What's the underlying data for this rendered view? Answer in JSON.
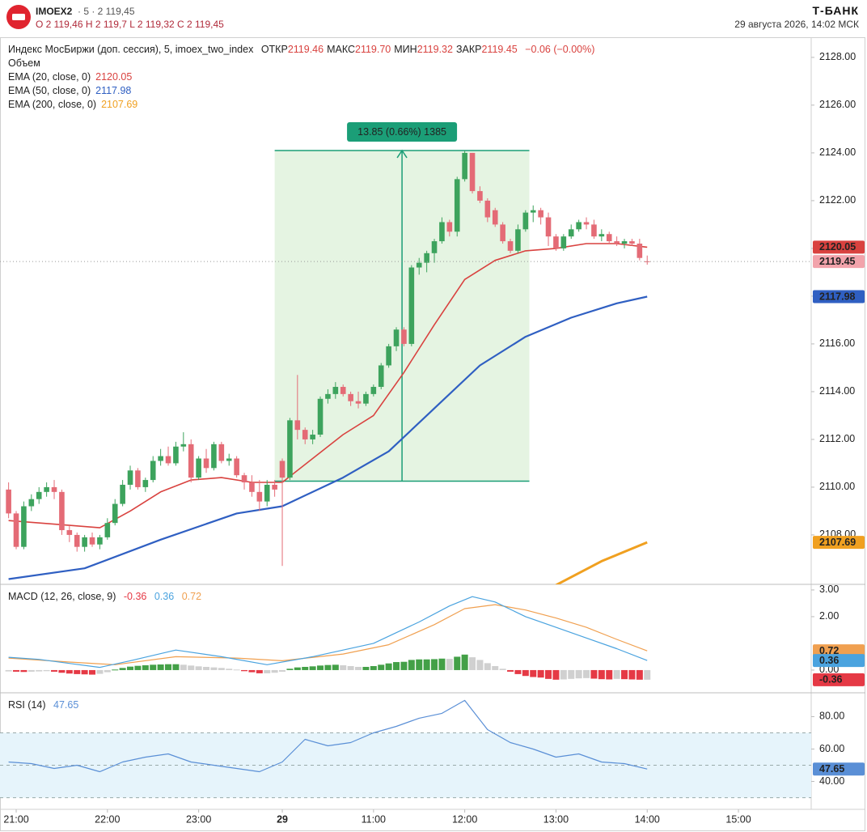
{
  "header": {
    "symbol": "IMOEX2",
    "meta": "· 5 · 2 119,45",
    "ohlc": "O 2 119,46   H 2 119,7   L 2 119,32   C 2 119,45",
    "brand": "Т-БАНК",
    "datetime": "29 августа 2026, 14:02 МСК"
  },
  "chart_data": [
    {
      "type": "candlestick",
      "title": "Индекс МосБиржи (доп. сессия), 5, imoex_two_index",
      "ohlc_legend": [
        {
          "label": "ОТКР",
          "value": "2119.46"
        },
        {
          "label": "МАКС",
          "value": "2119.70"
        },
        {
          "label": "МИН",
          "value": "2119.32"
        },
        {
          "label": "ЗАКР",
          "value": "2119.45"
        }
      ],
      "change": "−0.06 (−0.00%)",
      "volume_label": "Объем",
      "up_color": "#3da35d",
      "down_color": "#e46b76",
      "last_price_color": "#f2a3ab",
      "xlim": [
        -1.13,
        105.57
      ],
      "xticks": [
        {
          "value": 1,
          "label": "21:00"
        },
        {
          "value": 13,
          "label": "22:00"
        },
        {
          "value": 25,
          "label": "23:00"
        },
        {
          "value": 36,
          "label": "29"
        },
        {
          "value": 48,
          "label": "11:00"
        },
        {
          "value": 60,
          "label": "12:00"
        },
        {
          "value": 72,
          "label": "13:00"
        },
        {
          "value": 84,
          "label": "14:00"
        },
        {
          "value": 96,
          "label": "15:00"
        }
      ],
      "ylim": [
        2105.93,
        2128.81
      ],
      "yticks": [
        {
          "value": 2108,
          "label": "2108.00"
        },
        {
          "value": 2110,
          "label": "2110.00"
        },
        {
          "value": 2112,
          "label": "2112.00"
        },
        {
          "value": 2114,
          "label": "2114.00"
        },
        {
          "value": 2116,
          "label": "2116.00"
        },
        {
          "value": 2118,
          "label": "2118.00"
        },
        {
          "value": 2120,
          "label": "2120.00"
        },
        {
          "value": 2122,
          "label": "2122.00"
        },
        {
          "value": 2124,
          "label": "2124.00"
        },
        {
          "value": 2126,
          "label": "2126.00"
        },
        {
          "value": 2128,
          "label": "2128.00"
        }
      ],
      "grid": false,
      "x": [
        0,
        1,
        2,
        3,
        4,
        5,
        6,
        7,
        8,
        9,
        10,
        11,
        12,
        13,
        14,
        15,
        16,
        17,
        18,
        19,
        20,
        21,
        22,
        23,
        24,
        25,
        26,
        27,
        28,
        29,
        30,
        31,
        32,
        33,
        34,
        35,
        36,
        37,
        38,
        39,
        40,
        41,
        42,
        43,
        44,
        45,
        46,
        47,
        48,
        49,
        50,
        51,
        52,
        53,
        54,
        55,
        56,
        57,
        58,
        59,
        60,
        61,
        62,
        63,
        64,
        65,
        66,
        67,
        68,
        69,
        70,
        71,
        72,
        73,
        74,
        75,
        76,
        77,
        78,
        79,
        80,
        81,
        82,
        83,
        84
      ],
      "open": [
        2109.9,
        2108.9,
        2107.5,
        2109.2,
        2109.5,
        2109.8,
        2110.0,
        2109.8,
        2108.2,
        2108.0,
        2107.5,
        2107.9,
        2107.6,
        2107.9,
        2108.5,
        2109.3,
        2110.1,
        2110.7,
        2110.0,
        2110.3,
        2111.1,
        2111.3,
        2111.0,
        2111.7,
        2111.8,
        2110.4,
        2111.2,
        2110.8,
        2111.8,
        2111.1,
        2111.2,
        2110.5,
        2110.2,
        2109.8,
        2109.4,
        2110.1,
        2111.1,
        2110.4,
        2112.8,
        2112.4,
        2112.0,
        2112.2,
        2113.7,
        2113.9,
        2114.2,
        2113.9,
        2113.6,
        2113.5,
        2113.9,
        2114.2,
        2115.1,
        2115.9,
        2116.6,
        2116.0,
        2119.2,
        2119.4,
        2119.8,
        2120.3,
        2121.1,
        2120.7,
        2122.9,
        2124.0,
        2122.4,
        2122.0,
        2121.6,
        2121.0,
        2120.3,
        2119.9,
        2120.8,
        2121.5,
        2121.6,
        2121.3,
        2120.5,
        2120.0,
        2120.5,
        2120.8,
        2121.1,
        2121.0,
        2120.5,
        2120.6,
        2120.3,
        2120.2,
        2120.3,
        2120.2,
        2119.46
      ],
      "high": [
        2110.2,
        2109.0,
        2109.4,
        2109.7,
        2110.0,
        2110.2,
        2110.3,
        2109.9,
        2108.4,
        2108.1,
        2108.0,
        2108.1,
        2108.0,
        2108.7,
        2109.5,
        2110.3,
        2110.9,
        2110.8,
        2110.4,
        2111.3,
        2111.6,
        2111.7,
        2111.9,
        2112.3,
        2112.0,
        2111.3,
        2111.6,
        2111.9,
        2111.9,
        2111.4,
        2111.3,
        2110.6,
        2110.5,
        2110.3,
        2110.3,
        2110.3,
        2111.2,
        2112.9,
        2114.7,
        2112.5,
        2112.4,
        2113.8,
        2114.1,
        2114.4,
        2114.3,
        2114.0,
        2114.0,
        2114.0,
        2114.3,
        2115.2,
        2116.0,
        2116.7,
        2116.7,
        2119.3,
        2119.6,
        2119.9,
        2120.4,
        2121.3,
        2121.2,
        2123.0,
        2124.1,
        2124.0,
        2122.6,
        2122.1,
        2121.7,
        2121.1,
        2120.4,
        2121.0,
        2121.6,
        2121.8,
        2121.7,
        2121.5,
        2120.6,
        2120.6,
        2121.0,
        2121.2,
        2121.3,
        2121.2,
        2120.8,
        2120.7,
        2120.5,
        2120.4,
        2120.4,
        2120.4,
        2119.7
      ],
      "low": [
        2108.7,
        2107.4,
        2107.4,
        2109.0,
        2109.3,
        2109.6,
        2109.5,
        2108.0,
        2107.7,
        2107.3,
        2107.3,
        2107.5,
        2107.4,
        2107.8,
        2108.4,
        2109.2,
        2109.9,
        2109.9,
        2109.8,
        2110.2,
        2110.9,
        2110.9,
        2110.9,
        2111.5,
        2110.2,
        2110.3,
        2110.6,
        2110.7,
        2111.0,
        2110.9,
        2110.4,
        2109.9,
        2109.6,
        2109.0,
        2109.2,
        2109.6,
        2106.7,
        2110.3,
        2112.0,
        2111.8,
        2111.8,
        2112.1,
        2113.5,
        2113.7,
        2113.8,
        2113.4,
        2113.3,
        2113.4,
        2113.8,
        2114.1,
        2115.0,
        2115.7,
        2115.9,
        2115.9,
        2118.9,
        2119.0,
        2119.4,
        2120.2,
        2120.5,
        2120.5,
        2122.8,
        2122.3,
        2121.9,
        2121.1,
        2120.9,
        2120.2,
        2119.8,
        2119.8,
        2120.7,
        2121.1,
        2121.0,
        2120.1,
        2119.9,
        2119.9,
        2120.4,
        2120.7,
        2120.8,
        2120.4,
        2120.3,
        2120.2,
        2120.1,
        2120.0,
        2120.1,
        2119.5,
        2119.32
      ],
      "close": [
        2108.9,
        2107.5,
        2109.2,
        2109.5,
        2109.8,
        2110.0,
        2109.8,
        2108.2,
        2108.0,
        2107.5,
        2107.9,
        2107.6,
        2107.9,
        2108.5,
        2109.3,
        2110.1,
        2110.7,
        2110.0,
        2110.3,
        2111.1,
        2111.3,
        2111.0,
        2111.7,
        2111.8,
        2110.4,
        2111.2,
        2110.8,
        2111.8,
        2111.1,
        2111.2,
        2110.5,
        2110.2,
        2109.8,
        2109.4,
        2110.1,
        2109.9,
        2110.4,
        2112.8,
        2112.4,
        2112.0,
        2112.2,
        2113.7,
        2113.9,
        2114.2,
        2113.9,
        2113.6,
        2113.5,
        2113.9,
        2114.2,
        2115.1,
        2115.9,
        2116.6,
        2116.0,
        2119.2,
        2119.4,
        2119.8,
        2120.3,
        2121.1,
        2120.7,
        2122.9,
        2124.0,
        2122.4,
        2122.0,
        2121.3,
        2121.0,
        2120.3,
        2119.9,
        2120.8,
        2121.5,
        2121.6,
        2121.3,
        2120.5,
        2120.0,
        2120.5,
        2120.8,
        2121.1,
        2121.0,
        2120.5,
        2120.6,
        2120.3,
        2120.2,
        2120.3,
        2120.2,
        2119.6,
        2119.45
      ],
      "overlays": [
        {
          "name": "EMA (20, close, 0)",
          "color": "#d9423f",
          "width": 1.6,
          "x": [
            0,
            8,
            12,
            16,
            20,
            24,
            28,
            32,
            36,
            40,
            44,
            48,
            52,
            56,
            60,
            64,
            68,
            72,
            76,
            80,
            84
          ],
          "values": [
            2108.6,
            2108.4,
            2108.3,
            2109.0,
            2109.8,
            2110.3,
            2110.4,
            2110.2,
            2110.2,
            2111.2,
            2112.2,
            2113.0,
            2114.8,
            2116.8,
            2118.7,
            2119.5,
            2119.9,
            2120.0,
            2120.2,
            2120.2,
            2120.05
          ]
        },
        {
          "name": "EMA (50, close, 0)",
          "color": "#2f5fc2",
          "width": 2.2,
          "x": [
            0,
            10,
            20,
            30,
            36,
            44,
            50,
            56,
            62,
            68,
            74,
            80,
            84
          ],
          "values": [
            2106.15,
            2106.6,
            2107.8,
            2108.9,
            2109.2,
            2110.4,
            2111.5,
            2113.3,
            2115.1,
            2116.3,
            2117.1,
            2117.7,
            2117.98
          ]
        },
        {
          "name": "EMA (200, close, 0)",
          "color": "#f0a020",
          "width": 3,
          "x": [
            72,
            78,
            84
          ],
          "values": [
            2105.9,
            2106.9,
            2107.69
          ]
        }
      ],
      "measure": {
        "x": [
          35,
          68.5
        ],
        "y": [
          2110.25,
          2124.1
        ],
        "label": "13.85 (0.66%) 1385",
        "color": "#1b9e77",
        "fill": "#e5f4e2"
      }
    },
    {
      "type": "macd",
      "title": "MACD (12, 26, close, 9)",
      "ylim": [
        -0.85,
        3.21
      ],
      "yticks": [
        {
          "value": 0,
          "label": "0.00"
        },
        {
          "value": 2,
          "label": "2.00"
        },
        {
          "value": 3,
          "label": "3.00"
        }
      ],
      "histogram": {
        "colors": {
          "rising_positive": "#43a047",
          "falling_positive": "#d0d0d0",
          "falling_negative": "#e53945",
          "rising_negative": "#d0d0d0"
        },
        "label_color": "#e53945",
        "values": [
          -0.05,
          -0.06,
          -0.07,
          -0.06,
          -0.05,
          -0.04,
          -0.06,
          -0.1,
          -0.13,
          -0.15,
          -0.16,
          -0.17,
          -0.14,
          -0.08,
          0.02,
          0.08,
          0.13,
          0.16,
          0.18,
          0.2,
          0.21,
          0.22,
          0.22,
          0.2,
          0.17,
          0.14,
          0.12,
          0.1,
          0.08,
          0.05,
          0.02,
          -0.04,
          -0.08,
          -0.12,
          -0.12,
          -0.1,
          -0.06,
          0.05,
          0.1,
          0.12,
          0.14,
          0.17,
          0.19,
          0.2,
          0.18,
          0.15,
          0.12,
          0.12,
          0.15,
          0.2,
          0.25,
          0.3,
          0.31,
          0.38,
          0.4,
          0.4,
          0.41,
          0.43,
          0.42,
          0.5,
          0.58,
          0.48,
          0.38,
          0.26,
          0.15,
          0.05,
          -0.06,
          -0.15,
          -0.22,
          -0.26,
          -0.28,
          -0.33,
          -0.36,
          -0.35,
          -0.33,
          -0.31,
          -0.3,
          -0.32,
          -0.34,
          -0.35,
          -0.33,
          -0.34,
          -0.35,
          -0.36,
          -0.36
        ]
      },
      "macd": {
        "color": "#4aa3df",
        "x": [
          0,
          4,
          8,
          12,
          16,
          22,
          28,
          34,
          40,
          44,
          48,
          51,
          54,
          58,
          61,
          64,
          68,
          72,
          76,
          80,
          84
        ],
        "values": [
          0.48,
          0.4,
          0.25,
          0.1,
          0.35,
          0.75,
          0.5,
          0.2,
          0.5,
          0.75,
          1.0,
          1.4,
          1.8,
          2.4,
          2.75,
          2.55,
          2.0,
          1.6,
          1.2,
          0.8,
          0.36
        ]
      },
      "signal": {
        "color": "#f0a050",
        "x": [
          0,
          8,
          14,
          22,
          30,
          36,
          44,
          50,
          56,
          60,
          64,
          68,
          72,
          76,
          80,
          84
        ],
        "values": [
          0.45,
          0.3,
          0.2,
          0.5,
          0.45,
          0.35,
          0.6,
          0.95,
          1.7,
          2.3,
          2.45,
          2.25,
          1.95,
          1.6,
          1.15,
          0.72
        ]
      }
    },
    {
      "type": "rsi",
      "title": "RSI (14)",
      "ylim": [
        22.8,
        94.7
      ],
      "yticks": [
        {
          "value": 40,
          "label": "40.00"
        },
        {
          "value": 60,
          "label": "60.00"
        },
        {
          "value": 80,
          "label": "80.00"
        }
      ],
      "bands": [
        30,
        50,
        70
      ],
      "band_fill": "#e6f4fb",
      "color": "#5a8fd6",
      "x": [
        0,
        3,
        6,
        9,
        12,
        15,
        18,
        21,
        24,
        27,
        30,
        33,
        36,
        39,
        42,
        45,
        48,
        51,
        54,
        57,
        60,
        63,
        66,
        69,
        72,
        75,
        78,
        81,
        84
      ],
      "values": [
        52,
        51,
        48,
        50,
        46,
        52,
        55,
        57,
        52,
        50,
        48,
        46,
        52,
        66,
        62,
        64,
        70,
        74,
        79,
        82,
        90,
        72,
        64,
        60,
        55,
        57,
        52,
        51,
        47.65
      ]
    }
  ]
}
